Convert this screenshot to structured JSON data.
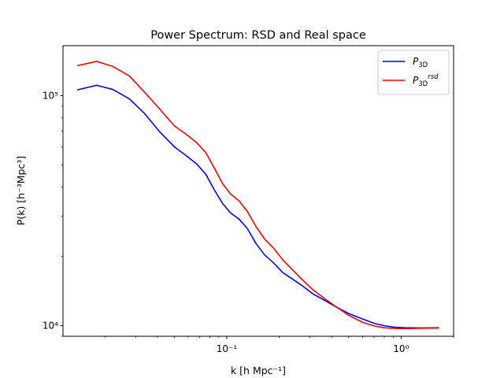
{
  "chart_data": {
    "type": "line",
    "title": "Power Spectrum: RSD and Real space",
    "xlabel": "k [h Mpc⁻¹]",
    "ylabel": "P(k) [h⁻³Mpc³]",
    "xscale": "log",
    "yscale": "log",
    "xlim": [
      0.0115,
      2.0
    ],
    "ylim": [
      9000,
      165000
    ],
    "x_ticks": [
      0.1,
      1.0
    ],
    "x_tick_labels": [
      "10⁻¹",
      "10⁰"
    ],
    "y_ticks": [
      10000,
      100000
    ],
    "y_tick_labels": [
      "10⁴",
      "10⁵"
    ],
    "grid": false,
    "legend_position": "top-right",
    "x": [
      0.0139,
      0.0179,
      0.0222,
      0.0276,
      0.0336,
      0.041,
      0.05,
      0.0592,
      0.0672,
      0.0759,
      0.0848,
      0.0946,
      0.1048,
      0.118,
      0.131,
      0.147,
      0.165,
      0.185,
      0.21,
      0.24,
      0.275,
      0.31,
      0.37,
      0.43,
      0.5,
      0.6,
      0.7,
      0.8,
      0.92,
      1.05,
      1.3,
      1.65
    ],
    "series": [
      {
        "name": "P₃D",
        "label_main": "P",
        "label_sub": "3D",
        "label_sup": "",
        "color": "#0000ff",
        "values": [
          106000,
          111000,
          106500,
          97000,
          84000,
          70000,
          60000,
          54500,
          50500,
          45500,
          39000,
          34000,
          31000,
          29000,
          26500,
          22800,
          20300,
          18800,
          17000,
          15900,
          14800,
          13800,
          12800,
          12000,
          11300,
          10700,
          10250,
          10000,
          9850,
          9800,
          9780,
          9800
        ]
      },
      {
        "name": "P₃Dʳˢᵈ",
        "label_main": "P",
        "label_sub": "3D",
        "label_sup": "rsd",
        "color": "#ff0000",
        "values": [
          135000,
          141000,
          134000,
          122000,
          104000,
          88000,
          74000,
          67500,
          62500,
          56500,
          48500,
          41500,
          37500,
          34800,
          31500,
          27000,
          23800,
          21800,
          19300,
          17400,
          15700,
          14400,
          13000,
          12000,
          11100,
          10350,
          9980,
          9800,
          9730,
          9710,
          9750,
          9770
        ]
      }
    ]
  }
}
